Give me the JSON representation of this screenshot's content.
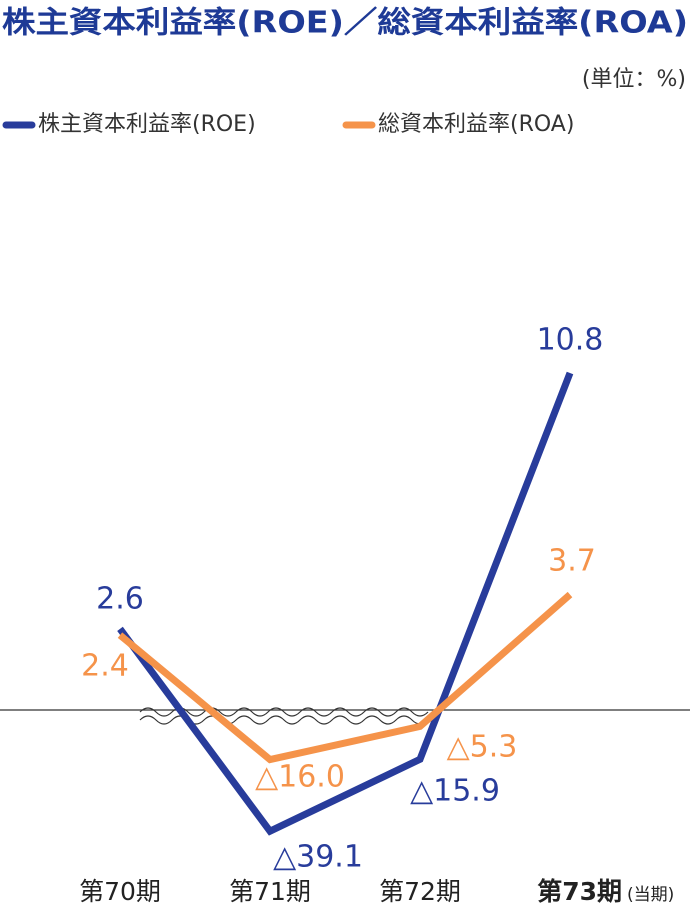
{
  "chart_data": {
    "type": "line",
    "title": "株主資本利益率(ROE)／総資本利益率(ROA)",
    "unit": "(単位：%)",
    "categories": [
      "第70期",
      "第71期",
      "第72期",
      "第73期"
    ],
    "current_period_note": "(当期)",
    "series": [
      {
        "name": "株主資本利益率(ROE)",
        "color": "#283c9b",
        "values": [
          2.6,
          -39.1,
          -15.9,
          10.8
        ],
        "value_labels": [
          "2.6",
          "△39.1",
          "△15.9",
          "10.8"
        ]
      },
      {
        "name": "総資本利益率(ROA)",
        "color": "#f5934a",
        "values": [
          2.4,
          -16.0,
          -5.3,
          3.7
        ],
        "value_labels": [
          "2.4",
          "△16.0",
          "△5.3",
          "3.7"
        ]
      }
    ]
  }
}
